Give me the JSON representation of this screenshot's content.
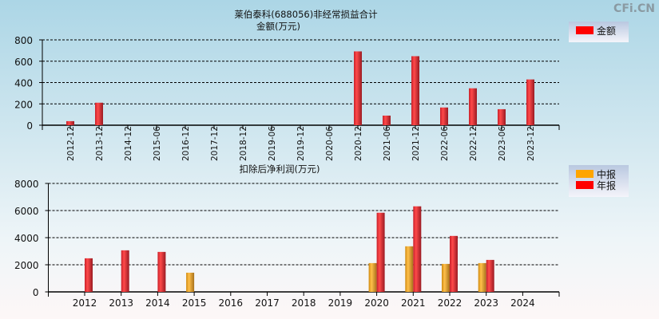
{
  "watermark": "CFi.CN",
  "chart_data": [
    {
      "type": "bar",
      "title": "莱伯泰科(688056)非经常损益合计",
      "ylabel": "金额(万元)",
      "ylim": [
        0,
        800
      ],
      "yticks": [
        0,
        200,
        400,
        600,
        800
      ],
      "grid": true,
      "legend_placement": "top-right",
      "categories": [
        "2012-12",
        "2013-12",
        "2014-12",
        "2015-06",
        "2016-12",
        "2017-12",
        "2018-12",
        "2019-06",
        "2019-12",
        "2020-06",
        "2020-12",
        "2021-06",
        "2021-12",
        "2022-06",
        "2022-12",
        "2023-06",
        "2023-12"
      ],
      "series": [
        {
          "name": "金额",
          "color": "#ff0000",
          "values": [
            38,
            211,
            0,
            0,
            0,
            0,
            0,
            0,
            0,
            0,
            692,
            90,
            647,
            166,
            346,
            150,
            429
          ]
        }
      ]
    },
    {
      "type": "bar",
      "title": "扣除后净利润(万元)",
      "ylim": [
        0,
        8000
      ],
      "yticks": [
        0,
        2000,
        4000,
        6000,
        8000
      ],
      "grid": true,
      "legend_placement": "top-right",
      "categories": [
        "2012",
        "2013",
        "2014",
        "2015",
        "2016",
        "2017",
        "2018",
        "2019",
        "2020",
        "2021",
        "2022",
        "2023",
        "2024"
      ],
      "series": [
        {
          "name": "中报",
          "color": "#ffa500",
          "values": [
            null,
            null,
            null,
            1415,
            null,
            null,
            null,
            null,
            2123,
            3362,
            2064,
            2123,
            null
          ]
        },
        {
          "name": "年报",
          "color": "#ff0000",
          "values": [
            2477,
            3067,
            2949,
            null,
            null,
            null,
            null,
            null,
            5839,
            6311,
            4128,
            2359,
            null
          ]
        }
      ]
    }
  ]
}
